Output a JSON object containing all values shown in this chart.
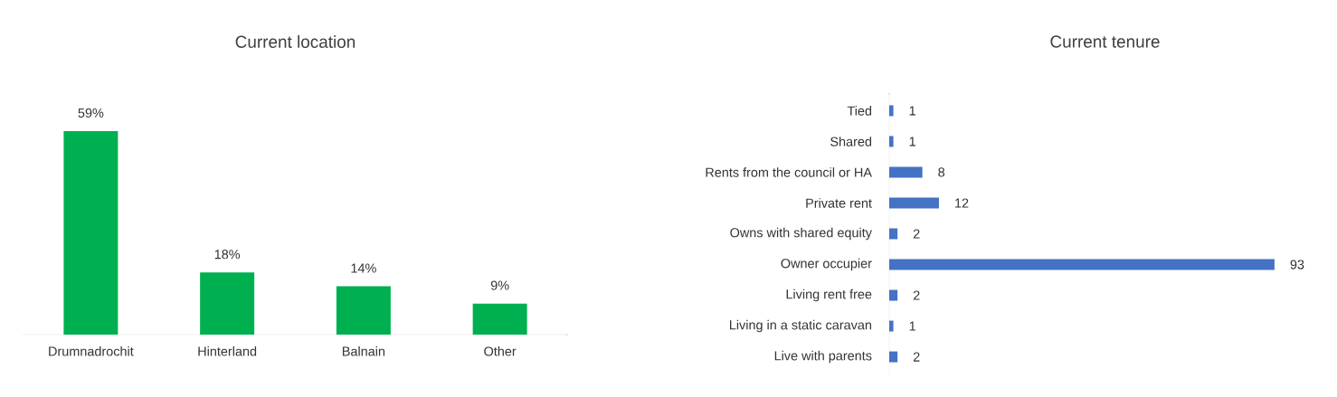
{
  "chart_data": [
    {
      "type": "bar",
      "title": "Current location",
      "categories": [
        "Drumnadrochit",
        "Hinterland",
        "Balnain",
        "Other"
      ],
      "values": [
        59,
        18,
        14,
        9
      ],
      "value_labels": [
        "59%",
        "18%",
        "14%",
        "9%"
      ],
      "color": "#00b050"
    },
    {
      "type": "bar",
      "orientation": "horizontal",
      "title": "Current tenure",
      "categories": [
        "Tied",
        "Shared",
        "Rents from the council or HA",
        "Private rent",
        "Owns with shared equity",
        "Owner occupier",
        "Living rent free",
        "Living in a static caravan",
        "Live with parents"
      ],
      "values": [
        1,
        1,
        8,
        12,
        2,
        93,
        2,
        1,
        2
      ],
      "data_labels": true,
      "color": "#4472c4"
    }
  ]
}
